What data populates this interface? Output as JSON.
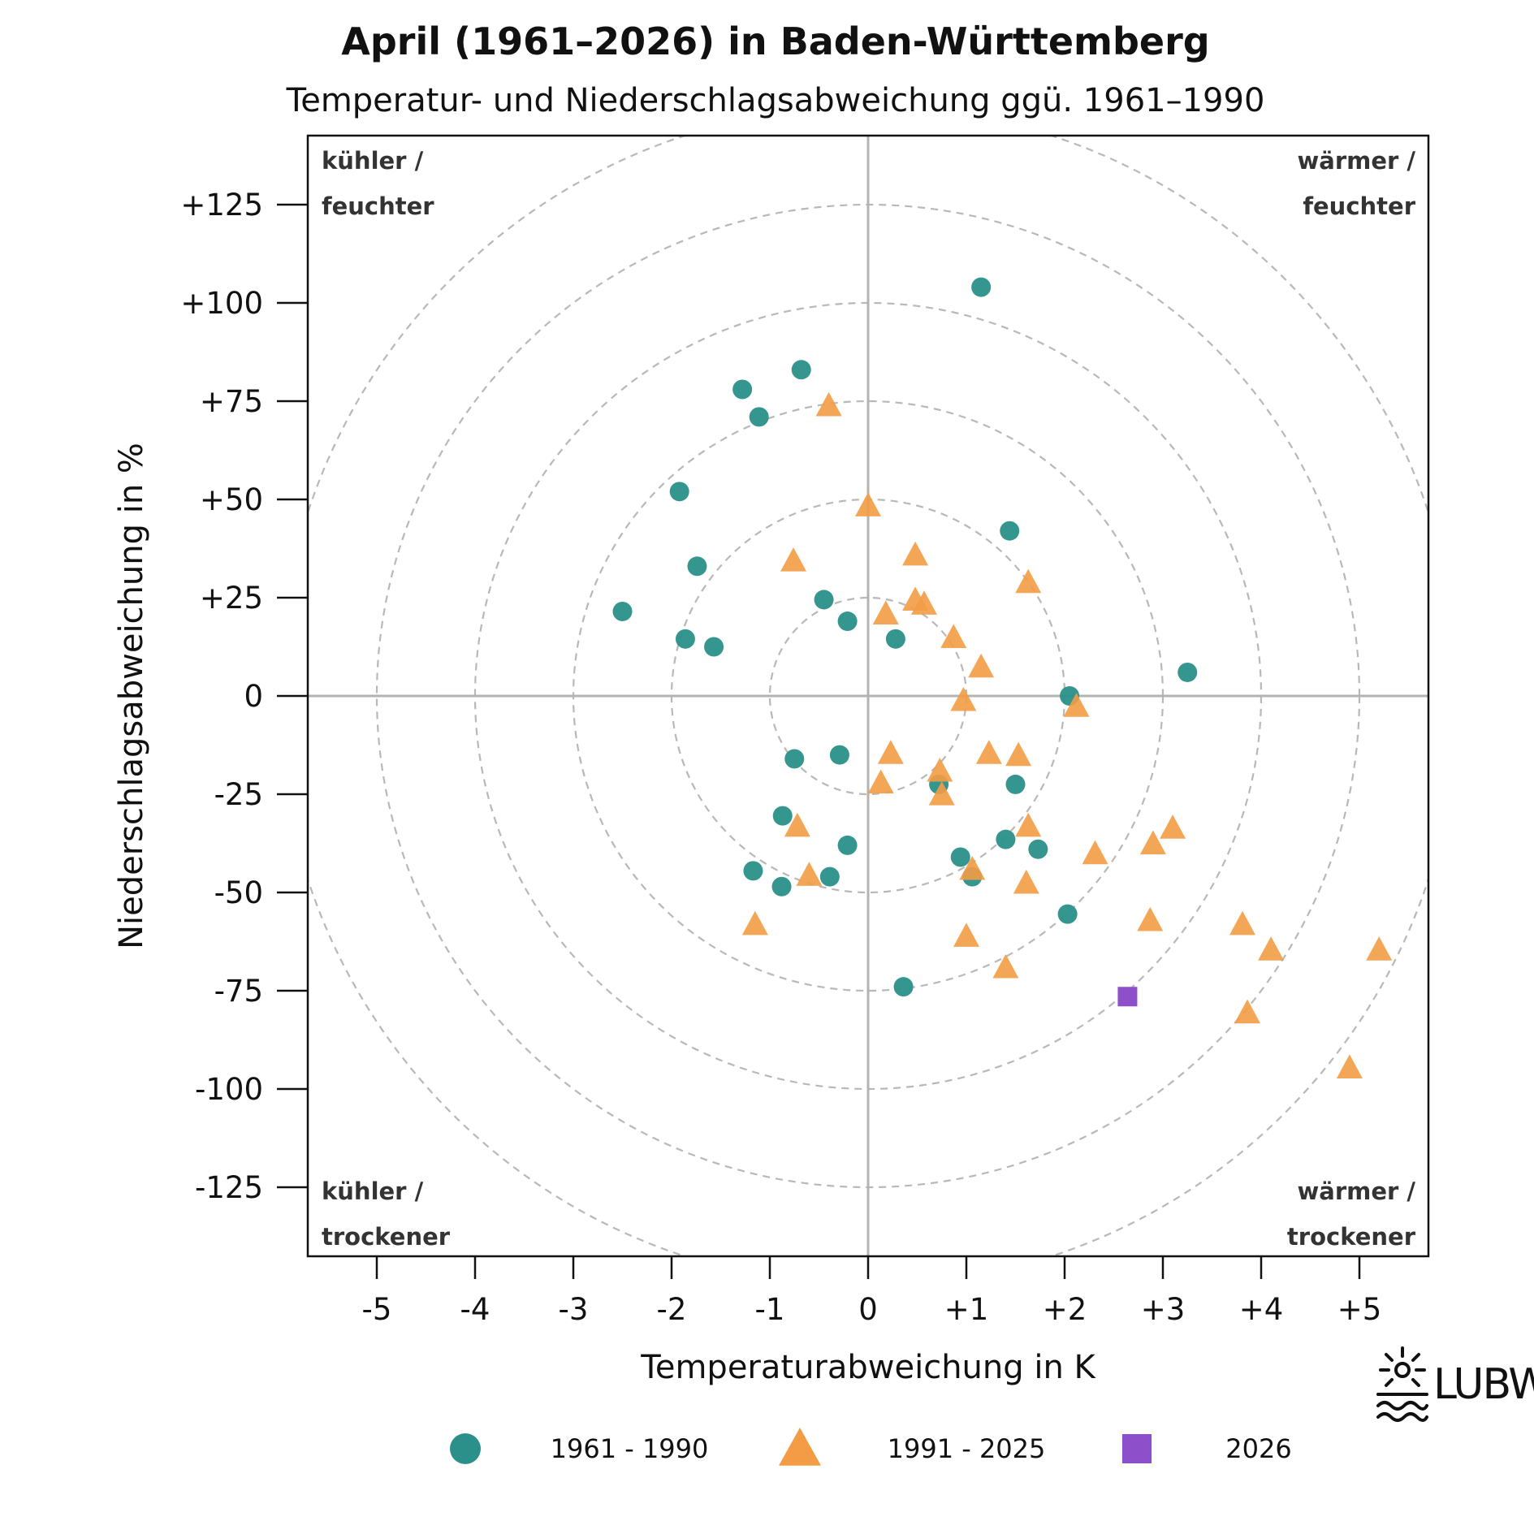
{
  "chart_data": {
    "type": "scatter",
    "title": "April (1961–2026) in Baden-Württemberg",
    "subtitle": "Temperatur- und Niederschlagsabweichung ggü. 1961–1990",
    "xlabel": "Temperaturabweichung in K",
    "ylabel": "Niederschlagsabweichung in %",
    "xlim": [
      -5.7,
      5.7
    ],
    "ylim": [
      -142,
      143
    ],
    "x_ticks": [
      -5,
      -4,
      -3,
      -2,
      -1,
      0,
      1,
      2,
      3,
      4,
      5
    ],
    "x_tick_labels": [
      "-5",
      "-4",
      "-3",
      "-2",
      "-1",
      "0",
      "+1",
      "+2",
      "+3",
      "+4",
      "+5"
    ],
    "y_ticks": [
      125,
      100,
      75,
      50,
      25,
      0,
      -25,
      -50,
      -75,
      -100,
      -125
    ],
    "y_tick_labels": [
      "+125",
      "+100",
      "+75",
      "+50",
      "+25",
      "0",
      "-25",
      "-50",
      "-75",
      "-100",
      "-125"
    ],
    "circle_radii": [
      1,
      2,
      3,
      4,
      5,
      6
    ],
    "quadrant_labels": {
      "top_left": [
        "kühler /",
        "feuchter"
      ],
      "top_right": [
        "wärmer /",
        "feuchter"
      ],
      "bottom_left": [
        "kühler /",
        "trockener"
      ],
      "bottom_right": [
        "wärmer /",
        "trockener"
      ]
    },
    "legend_position": "bottom",
    "grid": false,
    "series": [
      {
        "name": "1961 - 1990",
        "marker": "circle",
        "color": "#2a9089",
        "points": [
          {
            "x": 1.15,
            "y": 104
          },
          {
            "x": -0.68,
            "y": 83
          },
          {
            "x": -1.28,
            "y": 78
          },
          {
            "x": -1.11,
            "y": 71
          },
          {
            "x": -1.92,
            "y": 52
          },
          {
            "x": 1.44,
            "y": 42
          },
          {
            "x": -1.74,
            "y": 33
          },
          {
            "x": -2.5,
            "y": 21.5
          },
          {
            "x": -0.45,
            "y": 24.5
          },
          {
            "x": -0.21,
            "y": 19
          },
          {
            "x": -1.86,
            "y": 14.5
          },
          {
            "x": -1.57,
            "y": 12.5
          },
          {
            "x": 0.28,
            "y": 14.5
          },
          {
            "x": 3.25,
            "y": 6
          },
          {
            "x": 2.05,
            "y": 0
          },
          {
            "x": -0.75,
            "y": -16
          },
          {
            "x": -0.29,
            "y": -15
          },
          {
            "x": 0.72,
            "y": -22.5
          },
          {
            "x": 1.5,
            "y": -22.5
          },
          {
            "x": -0.87,
            "y": -30.5
          },
          {
            "x": -0.21,
            "y": -38
          },
          {
            "x": 1.4,
            "y": -36.5
          },
          {
            "x": 1.73,
            "y": -39
          },
          {
            "x": 0.94,
            "y": -41
          },
          {
            "x": -1.17,
            "y": -44.5
          },
          {
            "x": -0.39,
            "y": -46
          },
          {
            "x": 1.06,
            "y": -46
          },
          {
            "x": -0.88,
            "y": -48.5
          },
          {
            "x": 2.03,
            "y": -55.5
          },
          {
            "x": 0.36,
            "y": -74
          }
        ]
      },
      {
        "name": "1991 - 2025",
        "marker": "triangle",
        "color": "#f39c45",
        "points": [
          {
            "x": -0.4,
            "y": 74
          },
          {
            "x": 0.0,
            "y": 48.5
          },
          {
            "x": 0.48,
            "y": 36
          },
          {
            "x": -0.76,
            "y": 34.5
          },
          {
            "x": 1.63,
            "y": 29
          },
          {
            "x": 0.48,
            "y": 24.5
          },
          {
            "x": 0.57,
            "y": 23.5
          },
          {
            "x": 0.18,
            "y": 21
          },
          {
            "x": 0.87,
            "y": 15
          },
          {
            "x": 1.15,
            "y": 7.5
          },
          {
            "x": 0.97,
            "y": -1
          },
          {
            "x": 2.12,
            "y": -2.5
          },
          {
            "x": 0.23,
            "y": -14.5
          },
          {
            "x": 1.23,
            "y": -14.5
          },
          {
            "x": 1.53,
            "y": -15
          },
          {
            "x": 0.73,
            "y": -19
          },
          {
            "x": 0.13,
            "y": -22
          },
          {
            "x": 0.75,
            "y": -25
          },
          {
            "x": -0.72,
            "y": -33
          },
          {
            "x": 1.63,
            "y": -33
          },
          {
            "x": 3.1,
            "y": -33.5
          },
          {
            "x": 2.9,
            "y": -37.5
          },
          {
            "x": 2.31,
            "y": -40
          },
          {
            "x": 1.06,
            "y": -44
          },
          {
            "x": -0.6,
            "y": -45.5
          },
          {
            "x": 1.61,
            "y": -47.5
          },
          {
            "x": 2.87,
            "y": -57
          },
          {
            "x": -1.15,
            "y": -58
          },
          {
            "x": 3.81,
            "y": -58
          },
          {
            "x": 1.0,
            "y": -61
          },
          {
            "x": 4.1,
            "y": -64.5
          },
          {
            "x": 5.2,
            "y": -64.5
          },
          {
            "x": 1.4,
            "y": -69
          },
          {
            "x": 3.86,
            "y": -80.5
          },
          {
            "x": 4.9,
            "y": -94.5
          }
        ]
      },
      {
        "name": "2026",
        "marker": "square",
        "color": "#8e4fcb",
        "points": [
          {
            "x": 2.64,
            "y": -76.5
          }
        ]
      }
    ]
  },
  "logo": {
    "text": "LUBW",
    "icon": "lubw-sun-wave-icon"
  }
}
